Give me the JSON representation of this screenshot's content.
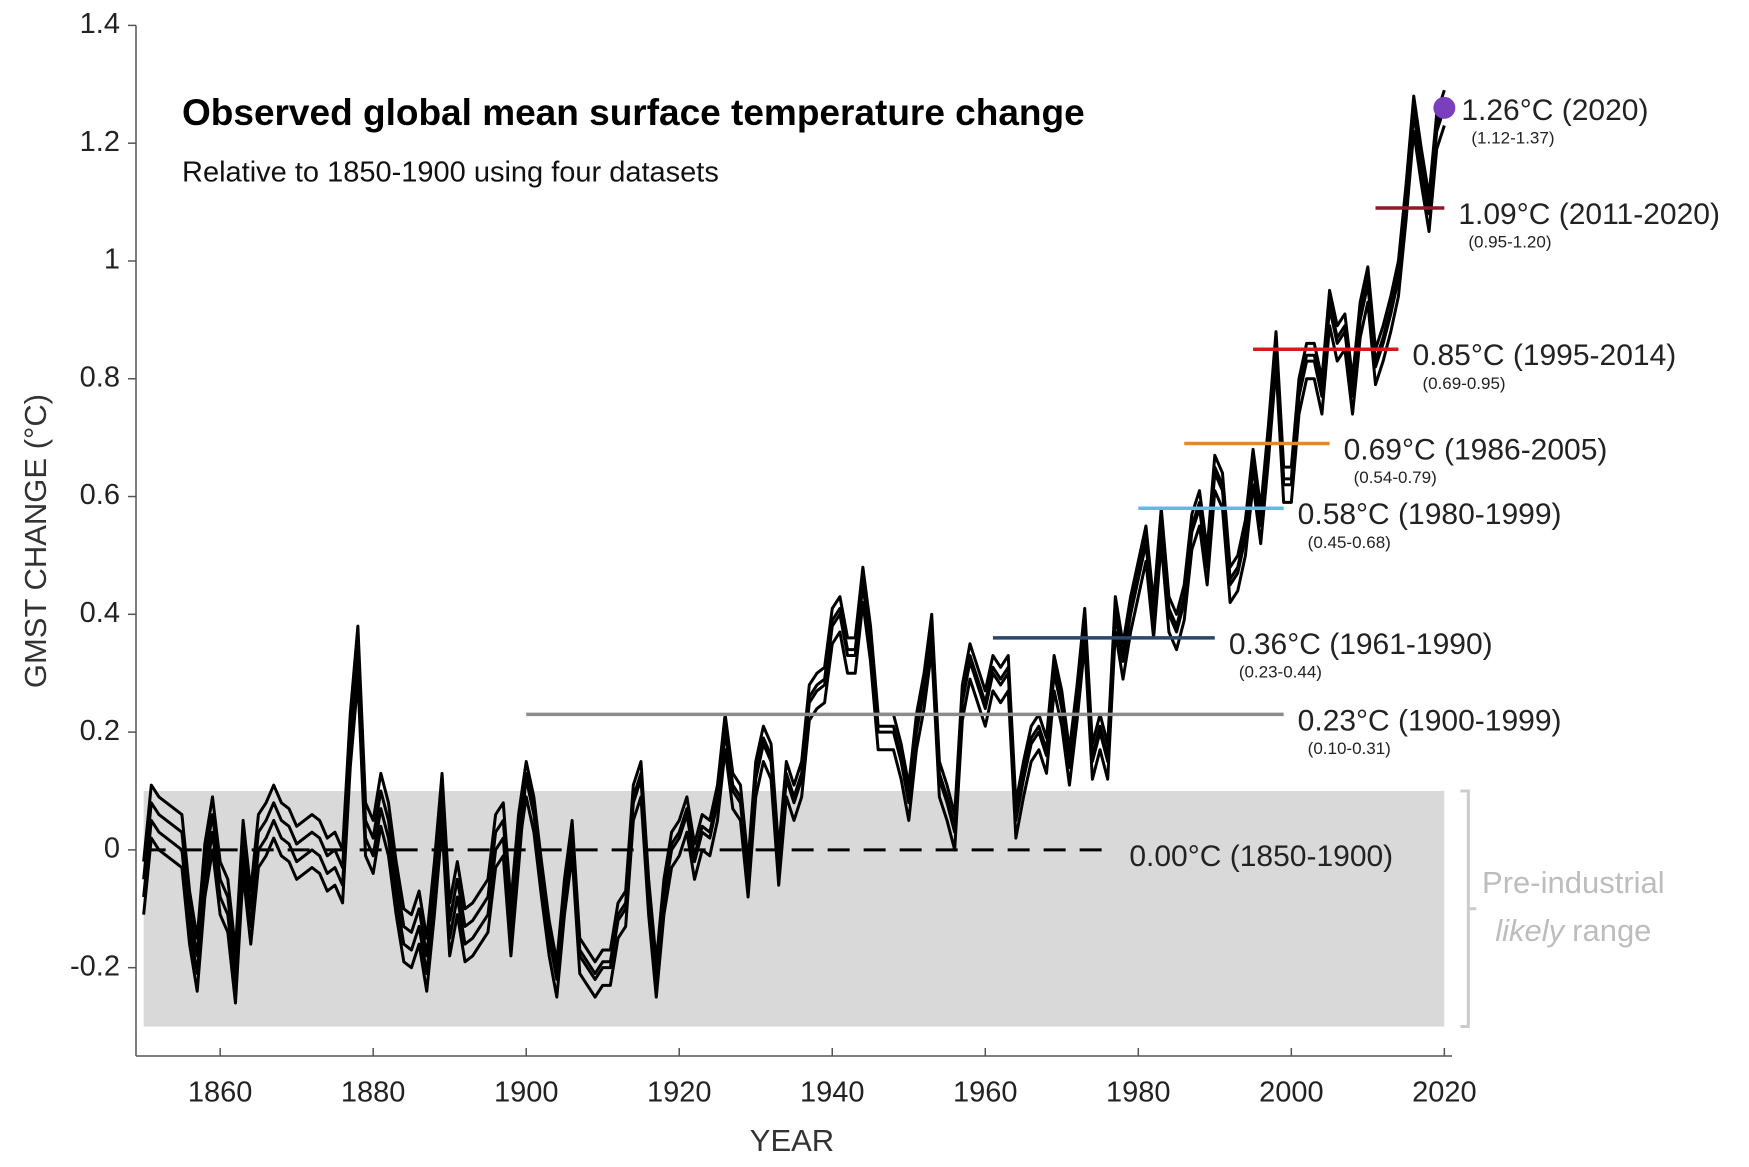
{
  "chart_data": {
    "type": "line",
    "title": "Observed global mean surface temperature change",
    "subtitle": "Relative to 1850-1900 using four datasets",
    "x_label": "YEAR",
    "y_label": "GMST CHANGE  (°C)",
    "xlim": [
      1849,
      2021
    ],
    "ylim": [
      -0.35,
      1.4
    ],
    "xticks": [
      1860,
      1880,
      1900,
      1920,
      1940,
      1960,
      1980,
      2000,
      2020
    ],
    "yticks": [
      -0.2,
      0,
      0.2,
      0.4,
      0.6,
      0.8,
      1,
      1.2,
      1.4
    ],
    "grid": false,
    "x": [
      1850,
      1851,
      1852,
      1853,
      1854,
      1855,
      1856,
      1857,
      1858,
      1859,
      1860,
      1861,
      1862,
      1863,
      1864,
      1865,
      1866,
      1867,
      1868,
      1869,
      1870,
      1871,
      1872,
      1873,
      1874,
      1875,
      1876,
      1877,
      1878,
      1879,
      1880,
      1881,
      1882,
      1883,
      1884,
      1885,
      1886,
      1887,
      1888,
      1889,
      1890,
      1891,
      1892,
      1893,
      1894,
      1895,
      1896,
      1897,
      1898,
      1899,
      1900,
      1901,
      1902,
      1903,
      1904,
      1905,
      1906,
      1907,
      1908,
      1909,
      1910,
      1911,
      1912,
      1913,
      1914,
      1915,
      1916,
      1917,
      1918,
      1919,
      1920,
      1921,
      1922,
      1923,
      1924,
      1925,
      1926,
      1927,
      1928,
      1929,
      1930,
      1931,
      1932,
      1933,
      1934,
      1935,
      1936,
      1937,
      1938,
      1939,
      1940,
      1941,
      1942,
      1943,
      1944,
      1945,
      1946,
      1947,
      1948,
      1949,
      1950,
      1951,
      1952,
      1953,
      1954,
      1955,
      1956,
      1957,
      1958,
      1959,
      1960,
      1961,
      1962,
      1963,
      1964,
      1965,
      1966,
      1967,
      1968,
      1969,
      1970,
      1971,
      1972,
      1973,
      1974,
      1975,
      1976,
      1977,
      1978,
      1979,
      1980,
      1981,
      1982,
      1983,
      1984,
      1985,
      1986,
      1987,
      1988,
      1989,
      1990,
      1991,
      1992,
      1993,
      1994,
      1995,
      1996,
      1997,
      1998,
      1999,
      2000,
      2001,
      2002,
      2003,
      2004,
      2005,
      2006,
      2007,
      2008,
      2009,
      2010,
      2011,
      2012,
      2013,
      2014,
      2015,
      2016,
      2017,
      2018,
      2019,
      2020
    ],
    "series": [
      {
        "color": "#000000",
        "values": [
          -0.05,
          0.08,
          0.06,
          0.05,
          0.04,
          0.03,
          -0.1,
          -0.18,
          -0.02,
          0.06,
          -0.05,
          -0.08,
          -0.2,
          0.02,
          -0.1,
          0.03,
          0.05,
          0.08,
          0.05,
          0.04,
          0.01,
          0.02,
          0.03,
          0.02,
          -0.01,
          0.0,
          -0.03,
          0.2,
          0.35,
          0.05,
          0.02,
          0.1,
          0.05,
          -0.05,
          -0.13,
          -0.14,
          -0.1,
          -0.18,
          -0.05,
          0.1,
          -0.12,
          -0.05,
          -0.13,
          -0.12,
          -0.1,
          -0.08,
          0.03,
          0.05,
          -0.12,
          0.03,
          0.12,
          0.06,
          -0.05,
          -0.15,
          -0.22,
          -0.08,
          0.02,
          -0.18,
          -0.2,
          -0.22,
          -0.2,
          -0.2,
          -0.12,
          -0.1,
          0.08,
          0.12,
          -0.08,
          -0.22,
          -0.08,
          0.0,
          0.02,
          0.06,
          -0.02,
          0.03,
          0.02,
          0.08,
          0.2,
          0.1,
          0.08,
          -0.05,
          0.12,
          0.18,
          0.15,
          -0.03,
          0.12,
          0.08,
          0.12,
          0.25,
          0.27,
          0.28,
          0.38,
          0.4,
          0.33,
          0.33,
          0.45,
          0.35,
          0.2,
          0.2,
          0.2,
          0.15,
          0.08,
          0.2,
          0.27,
          0.37,
          0.12,
          0.08,
          0.03,
          0.25,
          0.32,
          0.28,
          0.24,
          0.3,
          0.28,
          0.3,
          0.05,
          0.12,
          0.18,
          0.2,
          0.16,
          0.3,
          0.24,
          0.14,
          0.25,
          0.38,
          0.15,
          0.2,
          0.15,
          0.4,
          0.32,
          0.4,
          0.46,
          0.52,
          0.39,
          0.55,
          0.4,
          0.37,
          0.42,
          0.54,
          0.58,
          0.48,
          0.64,
          0.61,
          0.45,
          0.47,
          0.53,
          0.65,
          0.55,
          0.69,
          0.85,
          0.62,
          0.62,
          0.77,
          0.83,
          0.83,
          0.77,
          0.92,
          0.86,
          0.88,
          0.77,
          0.9,
          0.96,
          0.82,
          0.86,
          0.91,
          0.97,
          1.1,
          1.25,
          1.16,
          1.08,
          1.22,
          1.26
        ]
      },
      {
        "color": "#000000",
        "values": [
          -0.02,
          0.11,
          0.09,
          0.08,
          0.07,
          0.06,
          -0.07,
          -0.15,
          0.01,
          0.09,
          -0.02,
          -0.05,
          -0.17,
          0.05,
          -0.07,
          0.06,
          0.08,
          0.11,
          0.08,
          0.07,
          0.04,
          0.05,
          0.06,
          0.05,
          0.02,
          0.03,
          0.0,
          0.23,
          0.38,
          0.08,
          0.05,
          0.13,
          0.08,
          -0.02,
          -0.1,
          -0.11,
          -0.07,
          -0.15,
          -0.02,
          0.13,
          -0.09,
          -0.02,
          -0.1,
          -0.09,
          -0.07,
          -0.05,
          0.06,
          0.08,
          -0.09,
          0.06,
          0.15,
          0.09,
          -0.02,
          -0.12,
          -0.19,
          -0.05,
          0.05,
          -0.15,
          -0.17,
          -0.19,
          -0.17,
          -0.17,
          -0.09,
          -0.07,
          0.11,
          0.15,
          -0.05,
          -0.19,
          -0.05,
          0.03,
          0.05,
          0.09,
          0.01,
          0.06,
          0.05,
          0.11,
          0.23,
          0.13,
          0.11,
          -0.02,
          0.15,
          0.21,
          0.18,
          0.0,
          0.15,
          0.11,
          0.15,
          0.28,
          0.3,
          0.31,
          0.41,
          0.43,
          0.36,
          0.36,
          0.48,
          0.38,
          0.23,
          0.23,
          0.23,
          0.18,
          0.11,
          0.23,
          0.3,
          0.4,
          0.15,
          0.11,
          0.06,
          0.28,
          0.35,
          0.31,
          0.27,
          0.33,
          0.31,
          0.33,
          0.08,
          0.15,
          0.21,
          0.23,
          0.19,
          0.33,
          0.27,
          0.17,
          0.28,
          0.41,
          0.18,
          0.23,
          0.18,
          0.43,
          0.35,
          0.43,
          0.49,
          0.55,
          0.42,
          0.58,
          0.43,
          0.4,
          0.45,
          0.57,
          0.61,
          0.51,
          0.67,
          0.64,
          0.48,
          0.5,
          0.56,
          0.68,
          0.58,
          0.72,
          0.88,
          0.65,
          0.65,
          0.8,
          0.86,
          0.86,
          0.8,
          0.95,
          0.89,
          0.91,
          0.8,
          0.93,
          0.99,
          0.85,
          0.89,
          0.94,
          1.0,
          1.13,
          1.28,
          1.19,
          1.11,
          1.25,
          1.29
        ]
      },
      {
        "color": "#000000",
        "values": [
          -0.08,
          0.05,
          0.03,
          0.02,
          0.01,
          0.0,
          -0.13,
          -0.21,
          -0.05,
          0.03,
          -0.08,
          -0.11,
          -0.23,
          -0.01,
          -0.13,
          0.0,
          0.02,
          0.05,
          0.02,
          0.01,
          -0.02,
          -0.01,
          0.0,
          -0.01,
          -0.04,
          -0.03,
          -0.06,
          0.17,
          0.32,
          0.02,
          -0.01,
          0.07,
          0.02,
          -0.08,
          -0.16,
          -0.17,
          -0.13,
          -0.21,
          -0.08,
          0.07,
          -0.15,
          -0.08,
          -0.16,
          -0.15,
          -0.13,
          -0.11,
          0.0,
          0.02,
          -0.15,
          0.0,
          0.09,
          0.03,
          -0.08,
          -0.18,
          -0.25,
          -0.11,
          -0.01,
          -0.21,
          -0.23,
          -0.25,
          -0.23,
          -0.23,
          -0.15,
          -0.13,
          0.05,
          0.09,
          -0.11,
          -0.25,
          -0.11,
          -0.03,
          -0.01,
          0.03,
          -0.05,
          0.0,
          -0.01,
          0.05,
          0.17,
          0.07,
          0.05,
          -0.08,
          0.09,
          0.15,
          0.12,
          -0.06,
          0.09,
          0.05,
          0.09,
          0.22,
          0.24,
          0.25,
          0.35,
          0.37,
          0.3,
          0.3,
          0.42,
          0.32,
          0.17,
          0.17,
          0.17,
          0.12,
          0.05,
          0.17,
          0.24,
          0.34,
          0.09,
          0.05,
          0.0,
          0.22,
          0.29,
          0.25,
          0.21,
          0.27,
          0.25,
          0.27,
          0.02,
          0.09,
          0.15,
          0.17,
          0.13,
          0.27,
          0.21,
          0.11,
          0.22,
          0.35,
          0.12,
          0.17,
          0.12,
          0.37,
          0.29,
          0.37,
          0.43,
          0.49,
          0.36,
          0.52,
          0.37,
          0.34,
          0.39,
          0.51,
          0.55,
          0.45,
          0.61,
          0.58,
          0.42,
          0.44,
          0.5,
          0.62,
          0.52,
          0.66,
          0.82,
          0.59,
          0.59,
          0.74,
          0.8,
          0.8,
          0.74,
          0.89,
          0.83,
          0.85,
          0.74,
          0.87,
          0.93,
          0.79,
          0.83,
          0.88,
          0.94,
          1.07,
          1.22,
          1.13,
          1.05,
          1.19,
          1.23
        ]
      },
      {
        "color": "#000000",
        "values": [
          -0.11,
          0.02,
          0.0,
          -0.01,
          -0.02,
          -0.03,
          -0.16,
          -0.24,
          -0.08,
          0.0,
          -0.11,
          -0.14,
          -0.26,
          -0.04,
          -0.16,
          -0.03,
          -0.01,
          0.02,
          -0.01,
          -0.02,
          -0.05,
          -0.04,
          -0.03,
          -0.04,
          -0.07,
          -0.06,
          -0.09,
          0.14,
          0.29,
          -0.01,
          -0.04,
          0.04,
          -0.01,
          -0.11,
          -0.19,
          -0.2,
          -0.16,
          -0.24,
          -0.11,
          0.04,
          -0.18,
          -0.11,
          -0.19,
          -0.18,
          -0.16,
          -0.14,
          -0.03,
          -0.01,
          -0.18,
          -0.03,
          0.13,
          0.07,
          -0.04,
          -0.14,
          -0.21,
          -0.07,
          0.03,
          -0.17,
          -0.19,
          -0.21,
          -0.19,
          -0.19,
          -0.11,
          -0.09,
          0.09,
          0.13,
          -0.07,
          -0.21,
          -0.07,
          0.01,
          0.03,
          0.07,
          -0.01,
          0.04,
          0.03,
          0.09,
          0.21,
          0.11,
          0.09,
          -0.04,
          0.13,
          0.19,
          0.16,
          -0.02,
          0.13,
          0.09,
          0.13,
          0.26,
          0.28,
          0.29,
          0.39,
          0.41,
          0.34,
          0.34,
          0.46,
          0.36,
          0.21,
          0.21,
          0.21,
          0.16,
          0.09,
          0.21,
          0.28,
          0.38,
          0.13,
          0.09,
          0.04,
          0.26,
          0.33,
          0.29,
          0.25,
          0.31,
          0.29,
          0.31,
          0.06,
          0.13,
          0.19,
          0.21,
          0.17,
          0.31,
          0.25,
          0.15,
          0.26,
          0.39,
          0.16,
          0.21,
          0.16,
          0.41,
          0.33,
          0.41,
          0.47,
          0.53,
          0.4,
          0.56,
          0.41,
          0.38,
          0.43,
          0.55,
          0.59,
          0.49,
          0.65,
          0.62,
          0.46,
          0.48,
          0.54,
          0.66,
          0.56,
          0.7,
          0.86,
          0.63,
          0.63,
          0.78,
          0.84,
          0.84,
          0.78,
          0.93,
          0.87,
          0.89,
          0.78,
          0.91,
          0.97,
          0.83,
          0.87,
          0.92,
          0.98,
          1.11,
          1.26,
          1.17,
          1.09,
          1.23,
          1.27
        ]
      }
    ],
    "band": {
      "range": [
        -0.3,
        0.1
      ],
      "x": [
        1850,
        2020
      ],
      "color": "#d9d9d9",
      "label_parts": [
        "Pre-industrial",
        "likely",
        "range"
      ]
    },
    "periods": [
      {
        "value": 0,
        "label": "0.00°C (1850-1900)",
        "x": [
          1850,
          1977
        ],
        "color": "#000000",
        "dashed": true
      },
      {
        "value": 0.23,
        "label": "0.23°C (1900-1999)",
        "range_label": "(0.10-0.31)",
        "x": [
          1900,
          1999
        ],
        "color": "#8c8c8c"
      },
      {
        "value": 0.36,
        "label": "0.36°C (1961-1990)",
        "range_label": "(0.23-0.44)",
        "x": [
          1961,
          1990
        ],
        "color": "#2c4768"
      },
      {
        "value": 0.58,
        "label": "0.58°C (1980-1999)",
        "range_label": "(0.45-0.68)",
        "x": [
          1980,
          1999
        ],
        "color": "#5bbde4"
      },
      {
        "value": 0.69,
        "label": "0.69°C (1986-2005)",
        "range_label": "(0.54-0.79)",
        "x": [
          1986,
          2005
        ],
        "color": "#e08a2c"
      },
      {
        "value": 0.85,
        "label": "0.85°C (1995-2014)",
        "range_label": "(0.69-0.95)",
        "x": [
          1995,
          2014
        ],
        "color": "#d7191c"
      },
      {
        "value": 1.09,
        "label": "1.09°C (2011-2020)",
        "range_label": "(0.95-1.20)",
        "x": [
          2011,
          2020
        ],
        "color": "#8b1a2b"
      }
    ],
    "point": {
      "value": 1.26,
      "label": "1.26°C (2020)",
      "range_label": "(1.12-1.37)",
      "x": 2020,
      "color": "#7a3fbf"
    }
  }
}
